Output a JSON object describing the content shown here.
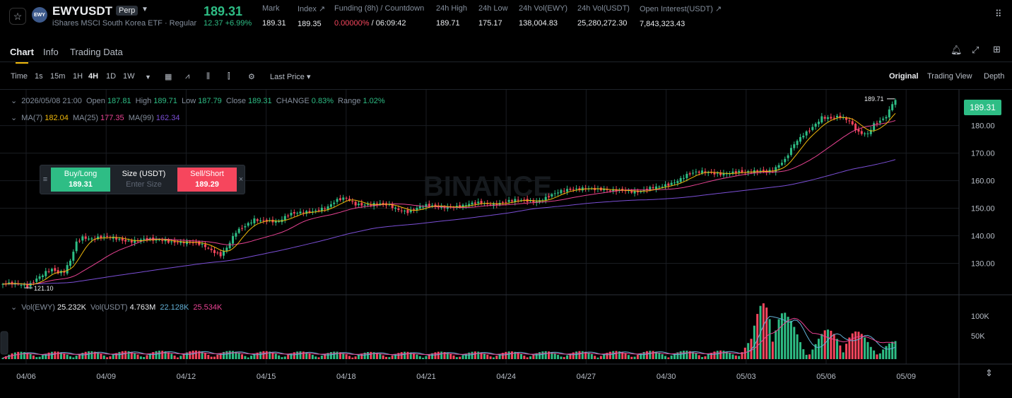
{
  "header": {
    "symbol": "EWYUSDT",
    "badge": "Perp",
    "subtitle": "iShares MSCI South Korea ETF · Regular",
    "logo_text": "EWY",
    "last_price": "189.31",
    "change": "12.37 +6.99%",
    "stats": [
      {
        "label": "Mark",
        "value": "189.31"
      },
      {
        "label": "Index ↗",
        "value": "189.35"
      },
      {
        "label": "Funding (8h) / Countdown",
        "value_a": "0.00000%",
        "value_b": " / 06:09:42"
      },
      {
        "label": "24h High",
        "value": "189.71"
      },
      {
        "label": "24h Low",
        "value": "175.17"
      },
      {
        "label": "24h Vol(EWY)",
        "value": "138,004.83"
      },
      {
        "label": "24h Vol(USDT)",
        "value": "25,280,272.30"
      },
      {
        "label": "Open Interest(USDT) ↗",
        "value": "7,843,323.43"
      }
    ]
  },
  "tabs": [
    "Chart",
    "Info",
    "Trading Data"
  ],
  "toolbar": {
    "intervals": [
      "Time",
      "1s",
      "15m",
      "1H",
      "4H",
      "1D",
      "1W"
    ],
    "price_type": "Last Price ▾",
    "views": [
      "Original",
      "Trading View",
      "Depth"
    ]
  },
  "legend": {
    "date": "2026/05/08 21:00",
    "open_label": "Open",
    "open": "187.81",
    "high_label": "High",
    "high": "189.71",
    "low_label": "Low",
    "low": "187.79",
    "close_label": "Close",
    "close": "189.31",
    "change_label": "CHANGE",
    "change": "0.83%",
    "range_label": "Range",
    "range": "1.02%",
    "ma7_label": "MA(7)",
    "ma7": "182.04",
    "ma25_label": "MA(25)",
    "ma25": "177.35",
    "ma99_label": "MA(99)",
    "ma99": "162.34",
    "vol_label": "Vol(EWY)",
    "vol": "25.232K",
    "volusdt_label": "Vol(USDT)",
    "volusdt": "4.763M",
    "vma1": "22.128K",
    "vma2": "25.534K"
  },
  "order": {
    "buy_label": "Buy/Long",
    "buy_price": "189.31",
    "size_label": "Size (USDT)",
    "size_placeholder": "Enter Size",
    "sell_label": "Sell/Short",
    "sell_price": "189.29"
  },
  "price_tag": "189.31",
  "max_marker": "189.71",
  "min_marker": "121.10",
  "watermark": "BINANCE",
  "colors": {
    "up": "#2ebd85",
    "down": "#f6465d",
    "ma7": "#f0b90b",
    "ma25": "#e84393",
    "ma99": "#7b4fd6",
    "accent": "#f0b90b"
  },
  "chart_data": {
    "type": "candlestick",
    "y_ticks": [
      "180.00",
      "170.00",
      "160.00",
      "150.00",
      "140.00",
      "130.00"
    ],
    "vol_ticks": [
      "100K",
      "50K"
    ],
    "x_ticks": [
      "04/06",
      "04/09",
      "04/12",
      "04/15",
      "04/18",
      "04/21",
      "04/24",
      "04/27",
      "04/30",
      "05/03",
      "05/06",
      "05/09"
    ],
    "ylim": [
      116,
      193
    ],
    "close_anchors": [
      [
        0,
        122.5
      ],
      [
        4,
        122.0
      ],
      [
        8,
        121.8
      ],
      [
        11,
        125
      ],
      [
        14,
        127
      ],
      [
        16,
        127.5
      ],
      [
        18,
        126
      ],
      [
        20,
        126.5
      ],
      [
        22,
        131
      ],
      [
        24,
        138
      ],
      [
        26,
        140
      ],
      [
        29,
        139
      ],
      [
        33,
        139
      ],
      [
        37,
        139
      ],
      [
        41,
        138.5
      ],
      [
        45,
        138.5
      ],
      [
        49,
        138
      ],
      [
        52,
        138.5
      ],
      [
        58,
        138
      ],
      [
        62,
        137
      ],
      [
        66,
        136
      ],
      [
        68,
        135
      ],
      [
        71,
        133.5
      ],
      [
        73,
        136
      ],
      [
        76,
        141
      ],
      [
        79,
        143
      ],
      [
        82,
        146
      ],
      [
        86,
        146
      ],
      [
        90,
        145
      ],
      [
        94,
        147.5
      ],
      [
        98,
        149
      ],
      [
        102,
        149.5
      ],
      [
        106,
        150
      ],
      [
        109,
        152.5
      ],
      [
        112,
        154
      ],
      [
        115,
        152
      ],
      [
        120,
        151
      ],
      [
        126,
        151
      ],
      [
        132,
        149
      ],
      [
        138,
        150.5
      ],
      [
        144,
        151
      ],
      [
        150,
        150.5
      ],
      [
        156,
        152
      ],
      [
        162,
        152
      ],
      [
        168,
        152.5
      ],
      [
        174,
        153
      ],
      [
        180,
        155
      ],
      [
        186,
        157
      ],
      [
        190,
        158
      ],
      [
        194,
        156.5
      ],
      [
        198,
        156
      ],
      [
        203,
        157
      ],
      [
        208,
        156
      ],
      [
        214,
        157.5
      ],
      [
        219,
        160
      ],
      [
        223,
        162
      ],
      [
        229,
        163
      ],
      [
        236,
        163
      ],
      [
        242,
        162.5
      ],
      [
        247,
        164
      ],
      [
        251,
        164
      ],
      [
        255,
        167
      ],
      [
        258,
        173
      ],
      [
        261,
        177
      ],
      [
        264,
        180
      ],
      [
        267,
        183
      ],
      [
        270,
        182
      ],
      [
        273,
        183
      ],
      [
        276,
        182
      ],
      [
        279,
        178
      ],
      [
        282,
        177
      ],
      [
        284,
        180
      ],
      [
        286,
        181
      ],
      [
        288,
        183
      ],
      [
        290,
        187.8
      ],
      [
        291,
        189.3
      ]
    ],
    "volume_levels": [
      [
        0,
        10
      ],
      [
        60,
        12
      ],
      [
        120,
        10
      ],
      [
        180,
        11
      ],
      [
        238,
        12
      ],
      [
        244,
        30
      ],
      [
        250,
        130
      ],
      [
        256,
        60
      ],
      [
        262,
        20
      ],
      [
        268,
        40
      ],
      [
        275,
        52
      ],
      [
        283,
        25
      ],
      [
        291,
        25
      ]
    ]
  }
}
